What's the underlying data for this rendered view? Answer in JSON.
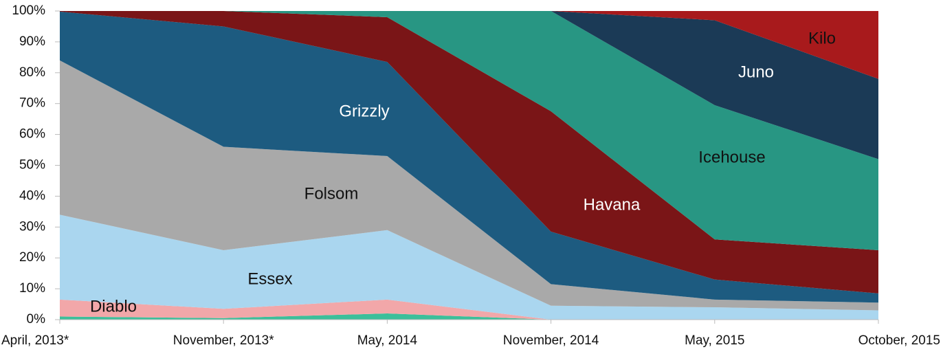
{
  "chart_data": {
    "type": "stacked_area_percent",
    "categories": [
      "April, 2013*",
      "November, 2013*",
      "May, 2014",
      "November, 2014",
      "May, 2015",
      "October, 2015"
    ],
    "ylim": [
      0,
      100
    ],
    "yticks": [
      {
        "value": 0,
        "label": "0%"
      },
      {
        "value": 10,
        "label": "10%"
      },
      {
        "value": 20,
        "label": "20%"
      },
      {
        "value": 30,
        "label": "30%"
      },
      {
        "value": 40,
        "label": "40%"
      },
      {
        "value": 50,
        "label": "50%"
      },
      {
        "value": 60,
        "label": "60%"
      },
      {
        "value": 70,
        "label": "70%"
      },
      {
        "value": 80,
        "label": "80%"
      },
      {
        "value": 90,
        "label": "90%"
      },
      {
        "value": 100,
        "label": "100%"
      }
    ],
    "series": [
      {
        "color": "#3cbf9a",
        "values": [
          1,
          0.5,
          2,
          0,
          0,
          0
        ]
      },
      {
        "name": "Diablo",
        "color": "#f2a7a9",
        "values": [
          5.5,
          3,
          4.5,
          0,
          0,
          0
        ]
      },
      {
        "name": "Essex",
        "color": "#aad6ef",
        "values": [
          27.5,
          19,
          22.5,
          4.5,
          4,
          3
        ]
      },
      {
        "name": "Folsom",
        "color": "#a9a9a9",
        "values": [
          50,
          33.5,
          24,
          7,
          2.5,
          2.5
        ]
      },
      {
        "name": "Grizzly",
        "color": "#1d5b80",
        "values": [
          15.8,
          39,
          30.5,
          17,
          6.5,
          3
        ]
      },
      {
        "name": "Havana",
        "color": "#7a1517",
        "values": [
          0.2,
          5,
          14.5,
          39,
          13,
          14
        ]
      },
      {
        "name": "Icehouse",
        "color": "#289683",
        "values": [
          0,
          0,
          2,
          32.5,
          43.5,
          29.5
        ]
      },
      {
        "name": "Juno",
        "color": "#1b3a56",
        "values": [
          0,
          0,
          0,
          0,
          27.5,
          26
        ]
      },
      {
        "name": "Kilo",
        "color": "#a81a1c",
        "values": [
          0,
          0,
          0,
          0,
          3,
          22
        ]
      }
    ]
  }
}
